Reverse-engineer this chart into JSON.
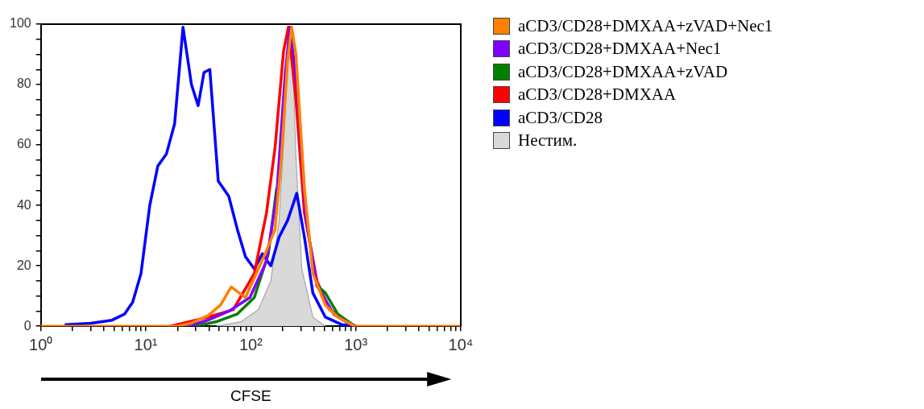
{
  "chart_data": {
    "type": "line",
    "xlabel": "CFSE",
    "log": "x",
    "legend": "right",
    "grid": false,
    "marker": "none",
    "xlim": [
      1,
      10000
    ],
    "xticks": [
      {
        "value": 1,
        "label": "10⁰"
      },
      {
        "value": 2,
        "label": null
      },
      {
        "value": 3,
        "label": null
      },
      {
        "value": 4,
        "label": null
      },
      {
        "value": 5,
        "label": null
      },
      {
        "value": 6,
        "label": null
      },
      {
        "value": 7,
        "label": null
      },
      {
        "value": 8,
        "label": null
      },
      {
        "value": 9,
        "label": null
      },
      {
        "value": 10,
        "label": "10¹"
      },
      {
        "value": 20,
        "label": null
      },
      {
        "value": 30,
        "label": null
      },
      {
        "value": 40,
        "label": null
      },
      {
        "value": 50,
        "label": null
      },
      {
        "value": 60,
        "label": null
      },
      {
        "value": 70,
        "label": null
      },
      {
        "value": 80,
        "label": null
      },
      {
        "value": 90,
        "label": null
      },
      {
        "value": 100,
        "label": "10²"
      },
      {
        "value": 200,
        "label": null
      },
      {
        "value": 300,
        "label": null
      },
      {
        "value": 400,
        "label": null
      },
      {
        "value": 500,
        "label": null
      },
      {
        "value": 600,
        "label": null
      },
      {
        "value": 700,
        "label": null
      },
      {
        "value": 800,
        "label": null
      },
      {
        "value": 900,
        "label": null
      },
      {
        "value": 1000,
        "label": "10³"
      },
      {
        "value": 2000,
        "label": null
      },
      {
        "value": 3000,
        "label": null
      },
      {
        "value": 4000,
        "label": null
      },
      {
        "value": 5000,
        "label": null
      },
      {
        "value": 6000,
        "label": null
      },
      {
        "value": 7000,
        "label": null
      },
      {
        "value": 8000,
        "label": null
      },
      {
        "value": 9000,
        "label": null
      },
      {
        "value": 10000,
        "label": "10⁴"
      }
    ],
    "ylim": [
      0,
      100
    ],
    "yticks": [
      0,
      {
        "value": 5,
        "label": null
      },
      {
        "value": 10,
        "label": null
      },
      {
        "value": 15,
        "label": null
      },
      20,
      {
        "value": 25,
        "label": null
      },
      {
        "value": 30,
        "label": null
      },
      {
        "value": 35,
        "label": null
      },
      40,
      {
        "value": 45,
        "label": null
      },
      {
        "value": 50,
        "label": null
      },
      {
        "value": 55,
        "label": null
      },
      60,
      {
        "value": 65,
        "label": null
      },
      {
        "value": 70,
        "label": null
      },
      {
        "value": 75,
        "label": null
      },
      80,
      {
        "value": 85,
        "label": null
      },
      {
        "value": 90,
        "label": null
      },
      {
        "value": 95,
        "label": null
      },
      100
    ],
    "series": [
      {
        "name": "aCD3/CD28+DMXAA+zVAD+Nec1",
        "color": "#ff8000",
        "x": [
          1,
          20,
          27,
          39,
          51.5,
          65,
          89,
          113,
          141,
          170,
          196,
          224,
          245,
          269,
          324,
          390,
          513,
          674,
          977,
          10000
        ],
        "values": [
          0,
          0,
          1,
          3.5,
          7,
          13,
          9.5,
          17.5,
          25,
          32,
          56,
          88,
          99,
          90,
          45.5,
          17.5,
          7,
          3,
          0,
          0
        ]
      },
      {
        "name": "aCD3/CD28+DMXAA+Nec1",
        "color": "#8000ff",
        "x": [
          25,
          39,
          62,
          98,
          141,
          176,
          212,
          236,
          280,
          337,
          426,
          617,
          888,
          1000
        ],
        "values": [
          0,
          2,
          5,
          9.5,
          21.5,
          43,
          83,
          99,
          77.5,
          35,
          13.5,
          4,
          0.5,
          0
        ]
      },
      {
        "name": "aCD3/CD28+DMXAA+zVAD",
        "color": "#008000",
        "x": [
          30,
          47,
          74,
          108,
          147,
          176,
          212,
          236,
          286,
          343,
          426,
          513,
          674,
          977
        ],
        "values": [
          0,
          1.5,
          4,
          9.5,
          24,
          45.5,
          null,
          null,
          null,
          null,
          13.5,
          11,
          4,
          0
        ]
      },
      {
        "name": "aCD3/CD28+DMXAA",
        "color": "#ff0000",
        "x": [
          17,
          22.6,
          39,
          68,
          108,
          141,
          170,
          205,
          228,
          269,
          324,
          426,
          563,
          888,
          1000
        ],
        "values": [
          0,
          1,
          3,
          5.5,
          17.5,
          37.5,
          59,
          91,
          99,
          75,
          37.5,
          15,
          5.5,
          1,
          0
        ]
      },
      {
        "name": "aCD3/CD28",
        "color": "#0000ff",
        "x": [
          1.73,
          3,
          4.76,
          6.26,
          7.5,
          9,
          10.9,
          13,
          15.7,
          18.8,
          22.6,
          27.2,
          31.5,
          35.8,
          40.7,
          49,
          61.7,
          74.5,
          89,
          108,
          129,
          155,
          186,
          224,
          274,
          324,
          390,
          513,
          741,
          977
        ],
        "values": [
          0.5,
          1,
          2,
          4,
          8,
          17.5,
          40,
          53,
          57,
          67,
          99,
          80,
          73,
          84,
          85,
          48,
          43,
          32,
          23,
          19,
          24,
          20,
          29.5,
          35,
          44,
          29.5,
          11,
          3,
          0.5,
          0
        ]
      },
      {
        "name": "Нестим.",
        "type": "area",
        "color": "#d9d9d9",
        "x": [
          47,
          81,
          118,
          155,
          186,
          212,
          228,
          245,
          269,
          306,
          390,
          513
        ],
        "values": [
          0,
          1.5,
          5.5,
          15,
          35,
          69,
          99,
          99,
          56,
          19,
          3,
          0
        ]
      }
    ]
  }
}
